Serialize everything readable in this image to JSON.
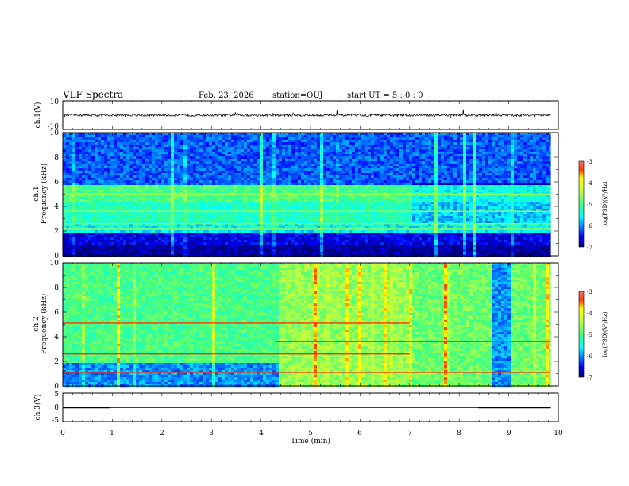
{
  "header": {
    "title": "VLF Spectra",
    "date": "Feb. 23, 2026",
    "station": "station=OUJ",
    "start_time": "start  UT =   5 : 0  : 0"
  },
  "chart_data": [
    {
      "type": "line",
      "id": "ch1-waveform",
      "ylabel": "ch.1(V)",
      "ylim": [
        -10,
        10
      ],
      "yticks": [
        "10",
        "-10"
      ],
      "xlim": [
        0,
        10
      ],
      "description_values": {
        "baseline": 0.0,
        "spike_amplitude": 4.0
      }
    },
    {
      "type": "heatmap",
      "id": "ch1-spectrogram",
      "ylabel": "ch.1\nFrequency (kHz)",
      "ylabel_lines": [
        "ch.1",
        "Frequency (kHz)"
      ],
      "yticks": [
        "0",
        "2",
        "4",
        "6",
        "8",
        "10"
      ],
      "ylim": [
        0,
        10
      ],
      "xlim": [
        0,
        10
      ],
      "data_extent_min": 9.85,
      "colorbar": {
        "label": "log(PSD)(V²/Hz)",
        "ticks": [
          "-3",
          "-4",
          "-5",
          "-6",
          "-7"
        ],
        "range": [
          -7,
          -3
        ]
      },
      "bands": [
        {
          "from_kHz": 0.0,
          "to_kHz": 1.0,
          "level": -6.9
        },
        {
          "from_kHz": 1.0,
          "to_kHz": 2.0,
          "level": -6.6
        },
        {
          "from_kHz": 2.0,
          "to_kHz": 2.8,
          "level": -5.6
        },
        {
          "from_kHz": 2.8,
          "to_kHz": 4.5,
          "level": -5.3
        },
        {
          "from_kHz": 4.5,
          "to_kHz": 5.8,
          "level": -5.0
        },
        {
          "from_kHz": 5.8,
          "to_kHz": 10.0,
          "level": -6.2
        }
      ],
      "lines_kHz": [
        2.2,
        2.6,
        3.6,
        5.0
      ]
    },
    {
      "type": "heatmap",
      "id": "ch2-spectrogram",
      "ylabel_lines": [
        "ch.2",
        "Frequency (kHz)"
      ],
      "yticks": [
        "0",
        "2",
        "4",
        "6",
        "8",
        "10"
      ],
      "ylim": [
        0,
        10
      ],
      "xlim": [
        0,
        10
      ],
      "data_extent_min": 9.85,
      "colorbar": {
        "label": "log(PSD)(V²/Hz)",
        "ticks": [
          "-3",
          "-4",
          "-5",
          "-6",
          "-7"
        ],
        "range": [
          -7,
          -3
        ]
      },
      "segments": [
        {
          "from_min": 0.0,
          "to_min": 4.3,
          "levels": [
            {
              "from_kHz": 0,
              "to_kHz": 2.0,
              "level": -6.0
            },
            {
              "from_kHz": 2.0,
              "to_kHz": 10,
              "level": -5.0
            }
          ],
          "lines_kHz": [
            1.1,
            2.6,
            5.1
          ]
        },
        {
          "from_min": 4.3,
          "to_min": 7.0,
          "levels": [
            {
              "from_kHz": 0,
              "to_kHz": 10,
              "level": -4.6
            }
          ],
          "lines_kHz": [
            1.1,
            2.6,
            3.6,
            5.1
          ]
        },
        {
          "from_min": 7.0,
          "to_min": 9.85,
          "levels": [
            {
              "from_kHz": 0,
              "to_kHz": 10,
              "level": -4.8
            }
          ],
          "lines_kHz": [
            1.1,
            3.6
          ]
        }
      ]
    },
    {
      "type": "line",
      "id": "ch3-waveform",
      "ylabel": "ch.3(V)",
      "ylim": [
        -5,
        5
      ],
      "yticks": [
        "5",
        "0",
        "-5"
      ],
      "xlim": [
        0,
        10
      ],
      "xlabel": "Time (min)",
      "xticks": [
        "0",
        "1",
        "2",
        "3",
        "4",
        "5",
        "6",
        "7",
        "8",
        "9",
        "10"
      ],
      "series": [
        {
          "x": [
            0.0,
            0.95,
            0.95,
            8.4,
            8.4,
            9.85
          ],
          "y": [
            0.0,
            0.0,
            0.2,
            0.2,
            0.0,
            0.0
          ]
        }
      ]
    }
  ]
}
